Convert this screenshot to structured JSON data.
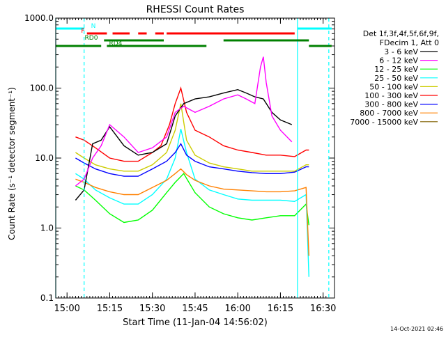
{
  "chart_data": {
    "type": "line",
    "title": "RHESSI Count Rates",
    "xlabel": "Start Time (11-Jan-04 14:56:02)",
    "ylabel": "Count Rate (s⁻¹ detector segment⁻¹)",
    "y_scale": "log",
    "ylim": [
      0.1,
      1000
    ],
    "xlim": [
      "14:56:02",
      "16:34:00"
    ],
    "x_ticks": [
      "15:00",
      "15:15",
      "15:30",
      "15:45",
      "16:00",
      "16:15",
      "16:30"
    ],
    "y_ticks": [
      "0.1",
      "1.0",
      "10.0",
      "100.0",
      "1000.0"
    ],
    "legend_position": "right",
    "legend_header": [
      "Det 1f,3f,4f,5f,6f,9f,",
      "FDecim 1, Att 0"
    ],
    "footer_timestamp": "14-Oct-2021 02:46",
    "series": [
      {
        "name": "3 - 6 keV",
        "color": "#000000",
        "x": [
          "15:03",
          "15:06",
          "15:09",
          "15:12",
          "15:15",
          "15:20",
          "15:25",
          "15:30",
          "15:35",
          "15:38",
          "15:41",
          "15:45",
          "15:50",
          "15:55",
          "16:00",
          "16:03",
          "16:06",
          "16:09",
          "16:12",
          "16:15",
          "16:19"
        ],
        "values": [
          2.5,
          3.5,
          16,
          18,
          28,
          15,
          11,
          12,
          16,
          40,
          60,
          70,
          75,
          85,
          95,
          85,
          75,
          70,
          45,
          35,
          30
        ]
      },
      {
        "name": "6 - 12 keV",
        "color": "#ff00ff",
        "x": [
          "15:03",
          "15:06",
          "15:09",
          "15:12",
          "15:15",
          "15:20",
          "15:25",
          "15:30",
          "15:35",
          "15:38",
          "15:41",
          "15:45",
          "15:50",
          "15:55",
          "16:00",
          "16:03",
          "16:06",
          "16:08",
          "16:09",
          "16:10",
          "16:12",
          "16:15",
          "16:19"
        ],
        "values": [
          4,
          5,
          10,
          15,
          30,
          20,
          12,
          14,
          20,
          45,
          55,
          45,
          55,
          70,
          80,
          70,
          60,
          200,
          280,
          120,
          40,
          25,
          17
        ]
      },
      {
        "name": "12 - 25 keV",
        "color": "#00ff00",
        "x": [
          "15:03",
          "15:06",
          "15:10",
          "15:15",
          "15:20",
          "15:25",
          "15:30",
          "15:35",
          "15:38",
          "15:41",
          "15:45",
          "15:50",
          "15:55",
          "16:00",
          "16:05",
          "16:10",
          "16:15",
          "16:20",
          "16:24",
          "16:25"
        ],
        "values": [
          4,
          3.5,
          2.5,
          1.6,
          1.2,
          1.3,
          1.8,
          3.2,
          4.5,
          6,
          3.2,
          2,
          1.6,
          1.4,
          1.3,
          1.4,
          1.5,
          1.5,
          2.2,
          1.1
        ]
      },
      {
        "name": "25 - 50 keV",
        "color": "#00ffff",
        "x": [
          "15:03",
          "15:06",
          "15:10",
          "15:15",
          "15:20",
          "15:25",
          "15:30",
          "15:35",
          "15:38",
          "15:40",
          "15:42",
          "15:45",
          "15:50",
          "15:55",
          "16:00",
          "16:05",
          "16:10",
          "16:15",
          "16:20",
          "16:24",
          "16:25"
        ],
        "values": [
          6,
          5,
          3.5,
          2.7,
          2.2,
          2.2,
          3,
          5,
          10,
          26,
          12,
          5,
          3.5,
          3,
          2.6,
          2.5,
          2.5,
          2.5,
          2.4,
          3,
          0.2
        ]
      },
      {
        "name": "50 - 100 keV",
        "color": "#cccc00",
        "x": [
          "15:03",
          "15:06",
          "15:10",
          "15:15",
          "15:20",
          "15:25",
          "15:30",
          "15:35",
          "15:38",
          "15:40",
          "15:42",
          "15:45",
          "15:50",
          "15:55",
          "16:00",
          "16:05",
          "16:10",
          "16:15",
          "16:20",
          "16:24",
          "16:25"
        ],
        "values": [
          12,
          10,
          8,
          7,
          6.5,
          6.5,
          8,
          12,
          25,
          60,
          18,
          11,
          8.5,
          7.5,
          7,
          6.5,
          6.5,
          6.5,
          6.5,
          8,
          8
        ]
      },
      {
        "name": "100 - 300 keV",
        "color": "#ff0000",
        "x": [
          "15:03",
          "15:06",
          "15:10",
          "15:15",
          "15:20",
          "15:25",
          "15:30",
          "15:33",
          "15:36",
          "15:38",
          "15:40",
          "15:42",
          "15:45",
          "15:50",
          "15:55",
          "16:00",
          "16:05",
          "16:10",
          "16:15",
          "16:20",
          "16:24",
          "16:25"
        ],
        "values": [
          20,
          18,
          14,
          10,
          9,
          9,
          12,
          15,
          30,
          60,
          100,
          45,
          25,
          20,
          15,
          13,
          12,
          11,
          11,
          10.5,
          13,
          13
        ]
      },
      {
        "name": "300 - 800 keV",
        "color": "#0000ff",
        "x": [
          "15:03",
          "15:06",
          "15:10",
          "15:15",
          "15:20",
          "15:25",
          "15:30",
          "15:35",
          "15:38",
          "15:40",
          "15:42",
          "15:45",
          "15:50",
          "15:55",
          "16:00",
          "16:05",
          "16:10",
          "16:15",
          "16:20",
          "16:24",
          "16:25"
        ],
        "values": [
          10,
          8.5,
          7,
          6,
          5.5,
          5.5,
          7,
          9,
          12,
          16,
          11,
          9,
          7.5,
          7,
          6.5,
          6.2,
          6,
          6,
          6.3,
          7.5,
          7.5
        ]
      },
      {
        "name": "800 - 7000 keV",
        "color": "#ff8000",
        "x": [
          "15:03",
          "15:06",
          "15:10",
          "15:15",
          "15:20",
          "15:25",
          "15:30",
          "15:35",
          "15:38",
          "15:40",
          "15:42",
          "15:45",
          "15:50",
          "15:55",
          "16:00",
          "16:05",
          "16:10",
          "16:15",
          "16:20",
          "16:24",
          "16:25"
        ],
        "values": [
          5,
          4.5,
          3.8,
          3.3,
          3,
          3,
          3.8,
          4.8,
          6,
          7,
          5.8,
          4.8,
          4,
          3.6,
          3.5,
          3.4,
          3.3,
          3.3,
          3.4,
          3.8,
          0.4
        ]
      },
      {
        "name": "7000 - 15000 keV",
        "color": "#806000",
        "x": [],
        "values": []
      }
    ],
    "annotations": [
      {
        "label": "N",
        "color": "#00ffff",
        "segments": [
          [
            "14:56:02",
            "15:06"
          ],
          [
            "16:21",
            "16:33"
          ]
        ]
      },
      {
        "label": "F",
        "color": "#ff0000",
        "segments": [
          [
            "15:07",
            "15:14"
          ],
          [
            "15:16",
            "15:22"
          ],
          [
            "15:25",
            "15:28"
          ],
          [
            "15:31",
            "15:34"
          ],
          [
            "15:35",
            "16:20"
          ]
        ]
      },
      {
        "label": "RD0",
        "color": "#008000",
        "segments": [
          [
            "15:13",
            "15:34"
          ],
          [
            "15:55",
            "16:25"
          ]
        ]
      },
      {
        "label": "RD4",
        "color": "#008000",
        "segments": [
          [
            "14:56:02",
            "15:12"
          ],
          [
            "15:14",
            "15:49"
          ],
          [
            "16:25",
            "16:33"
          ]
        ]
      }
    ],
    "vlines": [
      {
        "t": "14:56:02",
        "style": "solid",
        "color": "#00ffff"
      },
      {
        "t": "15:06",
        "style": "dashed",
        "color": "#00ffff"
      },
      {
        "t": "16:21",
        "style": "solid",
        "color": "#00ffff"
      },
      {
        "t": "16:32",
        "style": "dashed",
        "color": "#00ffff"
      }
    ]
  }
}
